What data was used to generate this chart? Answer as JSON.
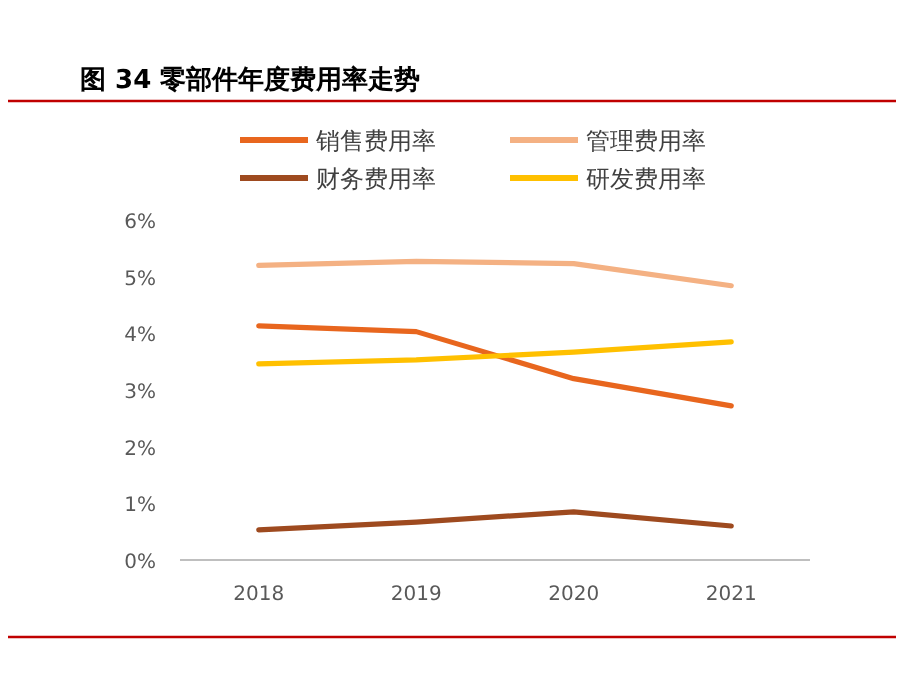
{
  "chart_data": {
    "type": "line",
    "title": "图 34 零部件年度费用率走势",
    "categories": [
      "2018",
      "2019",
      "2020",
      "2021"
    ],
    "series": [
      {
        "name": "销售费用率",
        "color": "#e8661e",
        "values": [
          4.13,
          4.03,
          3.2,
          2.72
        ]
      },
      {
        "name": "管理费用率",
        "color": "#f4b183",
        "values": [
          5.2,
          5.27,
          5.23,
          4.84
        ]
      },
      {
        "name": "财务费用率",
        "color": "#9e4a1f",
        "values": [
          0.53,
          0.67,
          0.85,
          0.6
        ]
      },
      {
        "name": "研发费用率",
        "color": "#ffc000",
        "values": [
          3.46,
          3.53,
          3.67,
          3.85
        ]
      }
    ],
    "ylim": [
      0,
      6
    ],
    "yticks": [
      {
        "value": 0,
        "label": "0%"
      },
      {
        "value": 1,
        "label": "1%"
      },
      {
        "value": 2,
        "label": "2%"
      },
      {
        "value": 3,
        "label": "3%"
      },
      {
        "value": 4,
        "label": "4%"
      },
      {
        "value": 5,
        "label": "5%"
      },
      {
        "value": 6,
        "label": "6%"
      }
    ],
    "grid": false,
    "legend": "top",
    "marker": "none",
    "line_style": "solid"
  }
}
